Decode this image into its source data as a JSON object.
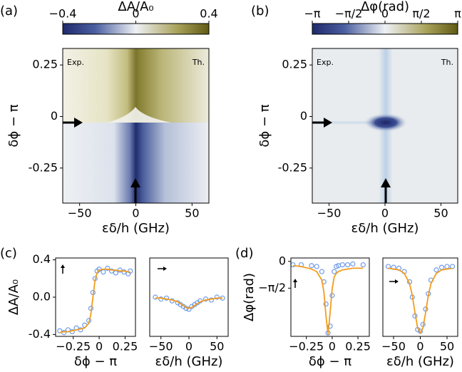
{
  "chart_data": [
    {
      "type": "heatmap",
      "panel_label": "(a)",
      "title": "ΔA/A₀",
      "xlabel": "εδ/h (GHz)",
      "ylabel": "δϕ − π",
      "annotations": [
        "Exp.",
        "Th."
      ],
      "xlim": [
        -65,
        65
      ],
      "xticks": [
        {
          "value": -50,
          "label": "−50"
        },
        0,
        50
      ],
      "ylim": [
        -0.42,
        0.33
      ],
      "yticks": [
        0.25,
        0,
        -0.25
      ],
      "clim": [
        -0.4,
        0.4
      ],
      "cticks": [
        {
          "value": -0.4,
          "label": "−0.4"
        },
        0,
        0.4
      ]
    },
    {
      "type": "heatmap",
      "panel_label": "(b)",
      "title": "Δφ(rad)",
      "xlabel": "εδ/h (GHz)",
      "ylabel": "δϕ − π",
      "annotations": [
        "Exp.",
        "Th."
      ],
      "xlim": [
        -65,
        65
      ],
      "xticks": [
        {
          "value": -50,
          "label": "−50"
        },
        0,
        50
      ],
      "ylim": [
        -0.42,
        0.33
      ],
      "yticks": [
        0.25,
        0,
        -0.25
      ],
      "clim": [
        -3.14159,
        3.14159
      ],
      "cticks": [
        {
          "value": -3.14159,
          "label": "−π"
        },
        {
          "value": -1.5708,
          "label": "−π/2"
        },
        0,
        {
          "value": 1.5708,
          "label": "π/2"
        },
        {
          "value": 3.14159,
          "label": "π"
        }
      ]
    },
    {
      "type": "line",
      "panel_label": "(c)",
      "xlabel": "δϕ − π",
      "ylabel": "ΔA/A₀",
      "xlim": [
        -0.42,
        0.35
      ],
      "xticks": [
        {
          "value": -0.25,
          "label": "−0.25"
        },
        0,
        0.25
      ],
      "ylim": [
        -0.42,
        0.42
      ],
      "yticks": [
        -0.4,
        {
          "value": 0,
          "label": "0.0"
        },
        0.4
      ],
      "x": [
        -0.38,
        -0.34,
        -0.3,
        -0.26,
        -0.22,
        -0.18,
        -0.14,
        -0.1,
        -0.08,
        -0.06,
        -0.04,
        -0.02,
        0.0,
        0.04,
        0.08,
        0.12,
        0.16,
        0.2,
        0.24,
        0.28,
        0.3
      ],
      "series": [
        {
          "style": "markers",
          "color": "#6f9be8",
          "values": [
            -0.36,
            -0.38,
            -0.35,
            -0.37,
            -0.33,
            -0.35,
            -0.3,
            -0.25,
            -0.12,
            0.05,
            0.2,
            0.28,
            0.3,
            0.27,
            0.31,
            0.28,
            0.26,
            0.29,
            0.27,
            0.25,
            0.28
          ]
        },
        {
          "style": "line",
          "color": "#f39c1e",
          "values": [
            -0.38,
            -0.37,
            -0.37,
            -0.36,
            -0.35,
            -0.34,
            -0.33,
            -0.28,
            -0.18,
            0.0,
            0.18,
            0.26,
            0.29,
            0.3,
            0.3,
            0.29,
            0.29,
            0.28,
            0.28,
            0.27,
            0.27
          ]
        }
      ]
    },
    {
      "type": "line",
      "xlabel": "εδ/h (GHz)",
      "xlim": [
        -70,
        70
      ],
      "xticks": [
        {
          "value": -50,
          "label": "−50"
        },
        0,
        50
      ],
      "ylim": [
        -0.42,
        0.42
      ],
      "x": [
        -60,
        -50,
        -40,
        -30,
        -20,
        -15,
        -10,
        -5,
        0,
        5,
        10,
        15,
        20,
        30,
        40,
        50,
        60
      ],
      "series": [
        {
          "style": "markers",
          "color": "#6f9be8",
          "values": [
            0.0,
            -0.02,
            -0.01,
            -0.04,
            -0.06,
            -0.08,
            -0.1,
            -0.12,
            -0.13,
            -0.1,
            -0.08,
            -0.06,
            -0.04,
            -0.02,
            -0.03,
            0.0,
            -0.01
          ]
        },
        {
          "style": "line",
          "color": "#f39c1e",
          "values": [
            -0.01,
            -0.01,
            -0.02,
            -0.03,
            -0.05,
            -0.07,
            -0.09,
            -0.11,
            -0.12,
            -0.11,
            -0.09,
            -0.07,
            -0.05,
            -0.03,
            -0.02,
            -0.01,
            -0.01
          ]
        }
      ]
    },
    {
      "type": "line",
      "panel_label": "(d)",
      "xlabel": "δϕ − π",
      "ylabel": "Δφ(rad)",
      "xlim": [
        -0.4,
        0.36
      ],
      "xticks": [
        {
          "value": -0.25,
          "label": "−0.25"
        },
        0,
        0.25
      ],
      "ylim": [
        -4.4,
        0.2
      ],
      "yticks": [
        0,
        {
          "value": -1.5708,
          "label": "−π/2"
        }
      ],
      "x": [
        -0.38,
        -0.3,
        -0.2,
        -0.15,
        -0.1,
        -0.08,
        -0.06,
        -0.04,
        -0.02,
        0,
        0.02,
        0.04,
        0.06,
        0.1,
        0.15,
        0.2,
        0.3
      ],
      "series": [
        {
          "style": "markers",
          "color": "#6f9be8",
          "values": [
            -0.2,
            -0.2,
            -0.25,
            -0.3,
            -0.6,
            -1.2,
            -2.5,
            -4.2,
            -3.8,
            -2.0,
            -0.6,
            -0.3,
            -0.25,
            -0.2,
            -0.2,
            -0.15,
            -0.2
          ]
        },
        {
          "style": "line",
          "color": "#f39c1e",
          "values": [
            -0.25,
            -0.3,
            -0.45,
            -0.6,
            -1.1,
            -1.8,
            -3.2,
            -4.3,
            -3.0,
            -1.6,
            -0.9,
            -0.7,
            -0.6,
            -0.5,
            -0.45,
            -0.4,
            -0.4
          ]
        }
      ]
    },
    {
      "type": "line",
      "xlabel": "εδ/h (GHz)",
      "xlim": [
        -70,
        70
      ],
      "xticks": [
        {
          "value": -50,
          "label": "−50"
        },
        0,
        50
      ],
      "ylim": [
        -4.4,
        0.2
      ],
      "x": [
        -60,
        -50,
        -40,
        -30,
        -20,
        -15,
        -10,
        -5,
        0,
        5,
        10,
        15,
        20,
        30,
        40,
        50,
        60
      ],
      "series": [
        {
          "style": "markers",
          "color": "#6f9be8",
          "values": [
            -0.3,
            -0.35,
            -0.4,
            -0.6,
            -1.2,
            -2.1,
            -3.2,
            -4.0,
            -4.1,
            -3.7,
            -2.8,
            -1.9,
            -1.1,
            -0.5,
            -0.35,
            -0.3,
            -0.3
          ]
        },
        {
          "style": "line",
          "color": "#f39c1e",
          "values": [
            -0.4,
            -0.45,
            -0.5,
            -0.7,
            -1.3,
            -2.0,
            -3.0,
            -3.9,
            -4.2,
            -3.9,
            -3.0,
            -2.0,
            -1.3,
            -0.7,
            -0.5,
            -0.45,
            -0.4
          ]
        }
      ]
    }
  ]
}
